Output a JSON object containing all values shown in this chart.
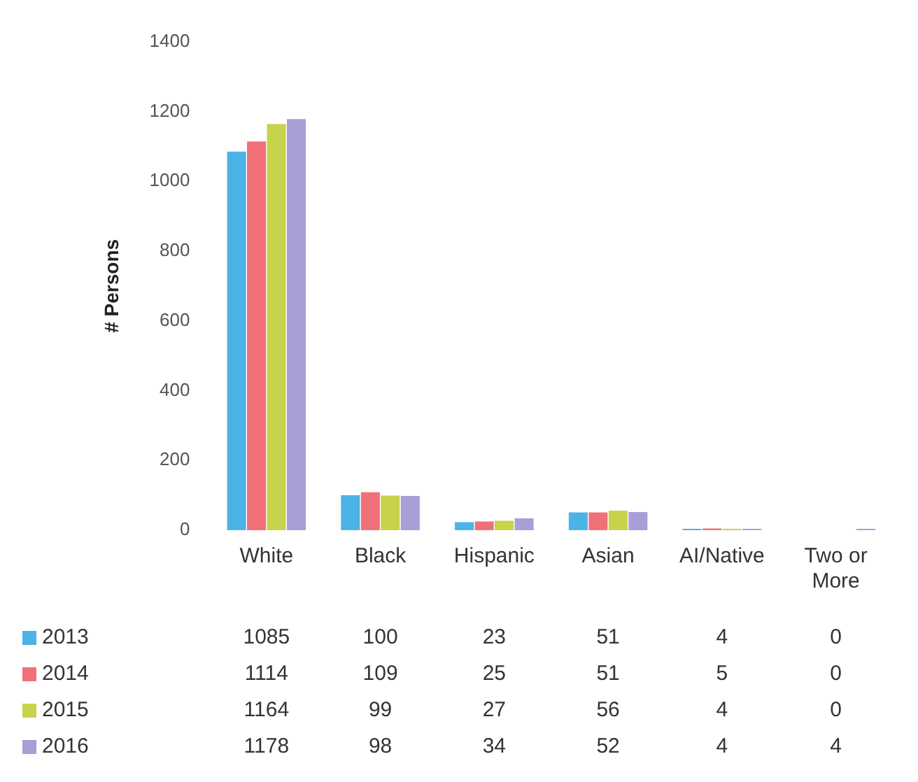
{
  "chart_data": {
    "type": "bar",
    "ylabel": "# Persons",
    "categories": [
      "White",
      "Black",
      "Hispanic",
      "Asian",
      "AI/Native",
      "Two or More"
    ],
    "series": [
      {
        "name": "2013",
        "color": "#4bb3e6",
        "values": [
          1085,
          100,
          23,
          51,
          4,
          0
        ]
      },
      {
        "name": "2014",
        "color": "#f0707a",
        "values": [
          1114,
          109,
          25,
          51,
          5,
          0
        ]
      },
      {
        "name": "2015",
        "color": "#c8d24a",
        "values": [
          1164,
          99,
          27,
          56,
          4,
          0
        ]
      },
      {
        "name": "2016",
        "color": "#a79fd6",
        "values": [
          1178,
          98,
          34,
          52,
          4,
          4
        ]
      }
    ],
    "ylim": [
      0,
      1400
    ],
    "yticks": [
      0,
      200,
      400,
      600,
      800,
      1000,
      1200,
      1400
    ],
    "grid": false,
    "legend": "bottom",
    "data_labels": true
  }
}
